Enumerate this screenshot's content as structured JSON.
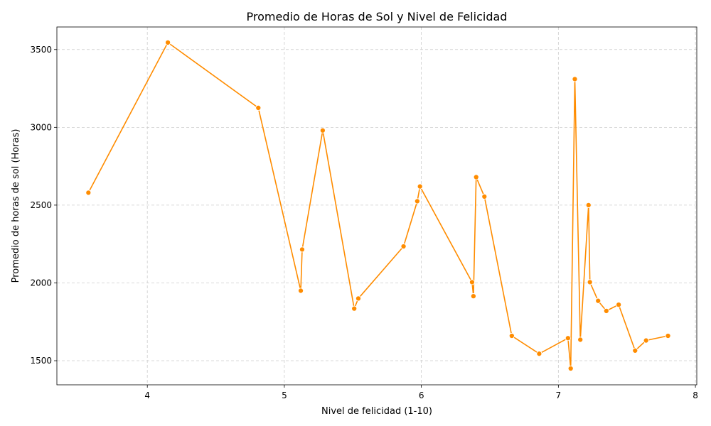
{
  "chart_data": {
    "type": "line",
    "title": "Promedio de Horas de Sol y Nivel de Felicidad",
    "xlabel": "Nivel de felicidad (1-10)",
    "ylabel": "Promedio de horas de sol (Horas)",
    "xlim": [
      3.34,
      8.01
    ],
    "ylim": [
      1345,
      3645
    ],
    "xticks": [
      4,
      5,
      6,
      7,
      8
    ],
    "yticks": [
      1500,
      2000,
      2500,
      3000,
      3500
    ],
    "grid": true,
    "color": "#ff8c00",
    "series": [
      {
        "x": [
          3.57,
          4.15,
          4.81,
          5.12,
          5.13,
          5.28,
          5.51,
          5.54,
          5.87,
          5.97,
          5.99,
          6.37,
          6.38,
          6.4,
          6.46,
          6.66,
          6.86,
          7.07,
          7.09,
          7.12,
          7.16,
          7.22,
          7.23,
          7.29,
          7.35,
          7.44,
          7.56,
          7.64,
          7.8
        ],
        "y": [
          2580,
          3545,
          3125,
          1950,
          2215,
          2980,
          1835,
          1900,
          2235,
          2525,
          2620,
          2005,
          1915,
          2680,
          2555,
          1660,
          1545,
          1645,
          1450,
          3310,
          1635,
          2500,
          2005,
          1885,
          1820,
          1860,
          1565,
          1630,
          1660
        ]
      }
    ]
  }
}
